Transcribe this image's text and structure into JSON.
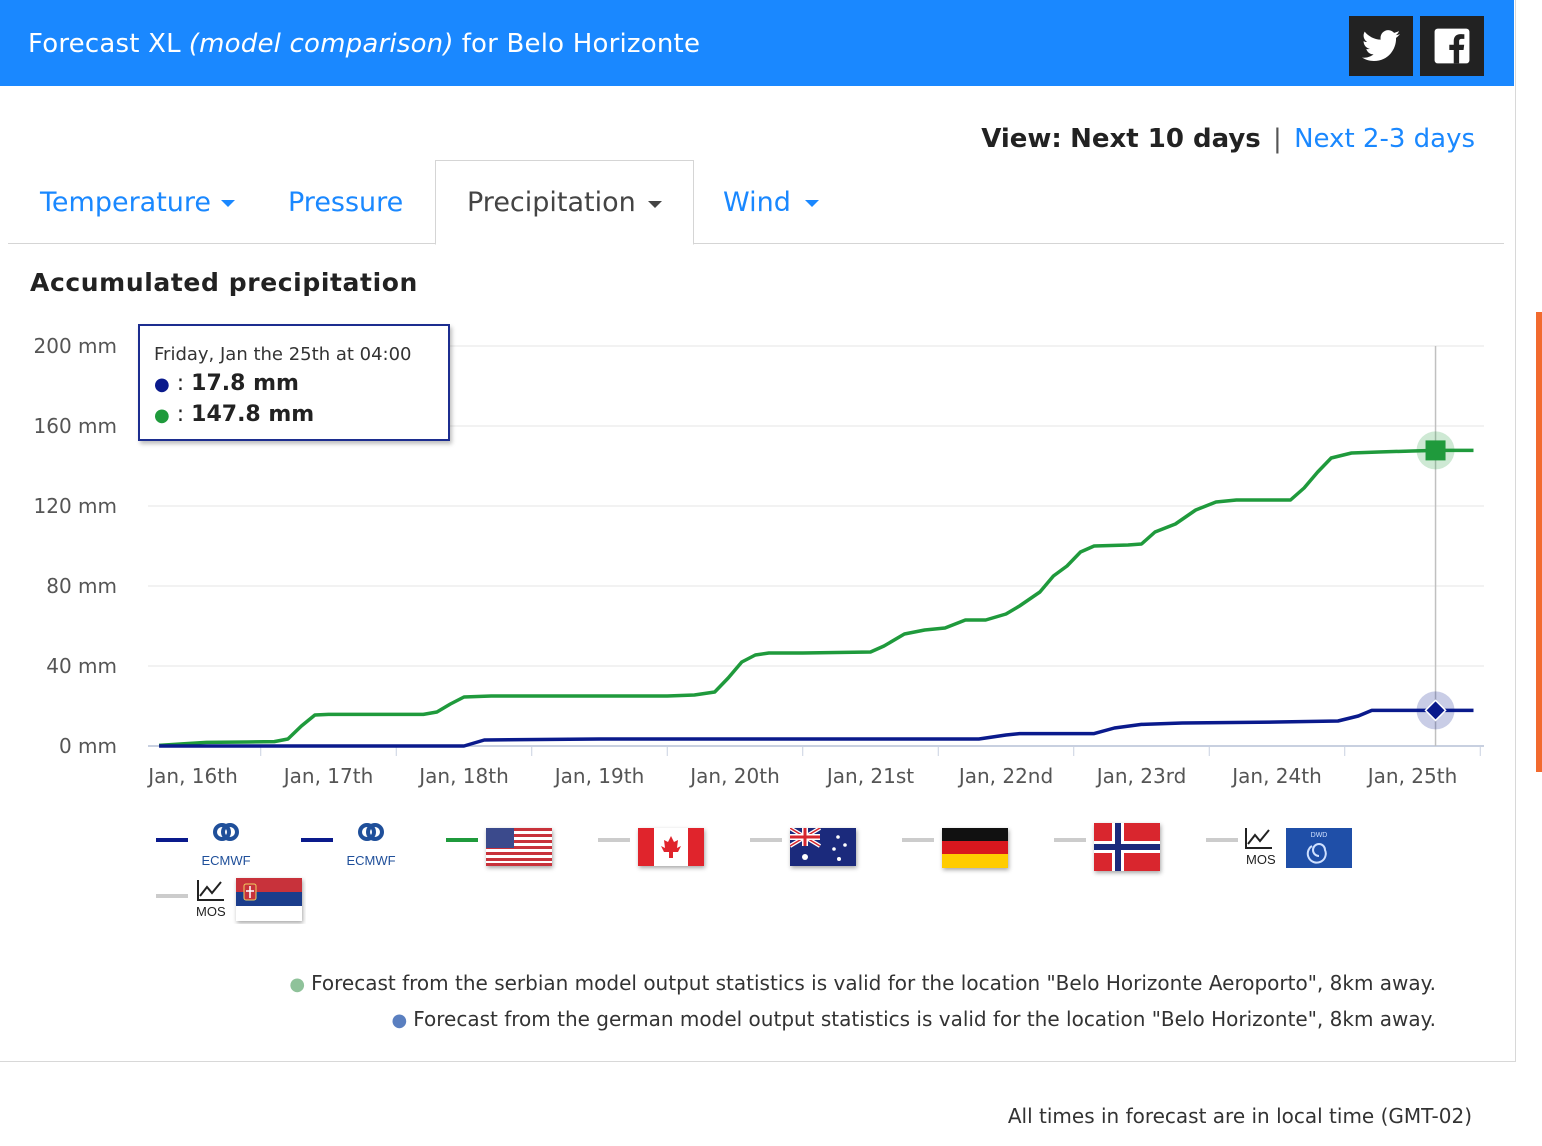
{
  "header": {
    "title_prefix": "Forecast XL",
    "title_italic": "(model comparison)",
    "title_suffix": "for Belo Horizonte",
    "share_twitter": "twitter-icon",
    "share_facebook": "facebook-icon"
  },
  "view": {
    "label": "View:",
    "current": "Next 10 days",
    "separator": "|",
    "alternative": "Next 2-3 days"
  },
  "tabs": [
    {
      "label": "Temperature",
      "dropdown": true,
      "active": false
    },
    {
      "label": "Pressure",
      "dropdown": false,
      "active": false
    },
    {
      "label": "Precipitation",
      "dropdown": true,
      "active": true
    },
    {
      "label": "Wind",
      "dropdown": true,
      "active": false
    }
  ],
  "chart_title": "Accumulated precipitation",
  "tooltip": {
    "header": "Friday, Jan the 25th at 04:00",
    "rows": [
      {
        "marker": "●",
        "sep": ":",
        "value": "17.8 mm",
        "color": "#0a1a8c"
      },
      {
        "marker": "●",
        "sep": ":",
        "value": "147.8 mm",
        "color": "#1f9a3c"
      }
    ]
  },
  "chart_data": {
    "type": "line",
    "title": "Accumulated precipitation",
    "ylabel": "",
    "xlabel": "",
    "y_unit": "mm",
    "ylim": [
      0,
      200
    ],
    "y_ticks": [
      0,
      40,
      80,
      120,
      160,
      200
    ],
    "y_tick_labels": [
      "0 mm",
      "40 mm",
      "80 mm",
      "120 mm",
      "160 mm",
      "200 mm"
    ],
    "x_unit": "days from Jan 16th 00:00",
    "x_ticks": [
      0,
      1,
      2,
      3,
      4,
      5,
      6,
      7,
      8,
      9
    ],
    "x_tick_labels": [
      "Jan, 16th",
      "Jan, 17th",
      "Jan, 18th",
      "Jan, 19th",
      "Jan, 20th",
      "Jan, 21st",
      "Jan, 22nd",
      "Jan, 23rd",
      "Jan, 24th",
      "Jan, 25th"
    ],
    "xlim": [
      -0.25,
      9.5
    ],
    "grid": true,
    "crosshair_x": 9.17,
    "series": [
      {
        "color": "#1f9a3c",
        "marker": "square",
        "points": [
          [
            -0.25,
            0.3
          ],
          [
            -0.05,
            1.2
          ],
          [
            0.1,
            1.8
          ],
          [
            0.4,
            2.0
          ],
          [
            0.6,
            2.2
          ],
          [
            0.7,
            3.5
          ],
          [
            0.8,
            10
          ],
          [
            0.9,
            15.5
          ],
          [
            1.0,
            15.8
          ],
          [
            1.7,
            15.8
          ],
          [
            1.8,
            17
          ],
          [
            1.9,
            21
          ],
          [
            2.0,
            24.5
          ],
          [
            2.2,
            25
          ],
          [
            3.5,
            25
          ],
          [
            3.7,
            25.5
          ],
          [
            3.85,
            27
          ],
          [
            3.95,
            34
          ],
          [
            4.05,
            42
          ],
          [
            4.15,
            45.5
          ],
          [
            4.25,
            46.5
          ],
          [
            4.5,
            46.5
          ],
          [
            5.0,
            47
          ],
          [
            5.1,
            50
          ],
          [
            5.25,
            56
          ],
          [
            5.4,
            58
          ],
          [
            5.55,
            59
          ],
          [
            5.7,
            63
          ],
          [
            5.85,
            63
          ],
          [
            6.0,
            66
          ],
          [
            6.1,
            70
          ],
          [
            6.25,
            77
          ],
          [
            6.35,
            85
          ],
          [
            6.45,
            90
          ],
          [
            6.55,
            97
          ],
          [
            6.65,
            100
          ],
          [
            6.9,
            100.5
          ],
          [
            7.0,
            101
          ],
          [
            7.1,
            107
          ],
          [
            7.25,
            111
          ],
          [
            7.4,
            118
          ],
          [
            7.55,
            122
          ],
          [
            7.7,
            123
          ],
          [
            7.95,
            123
          ],
          [
            8.1,
            123
          ],
          [
            8.2,
            129
          ],
          [
            8.3,
            137
          ],
          [
            8.4,
            144
          ],
          [
            8.55,
            146.5
          ],
          [
            8.75,
            147
          ],
          [
            9.0,
            147.5
          ],
          [
            9.17,
            147.8
          ],
          [
            9.45,
            147.8
          ]
        ]
      },
      {
        "color": "#0a1a8c",
        "marker": "diamond",
        "points": [
          [
            -0.25,
            0
          ],
          [
            2.0,
            0
          ],
          [
            2.15,
            3.0
          ],
          [
            3.0,
            3.5
          ],
          [
            4.5,
            3.5
          ],
          [
            5.5,
            3.5
          ],
          [
            5.8,
            3.5
          ],
          [
            6.0,
            5.5
          ],
          [
            6.1,
            6.2
          ],
          [
            6.65,
            6.2
          ],
          [
            6.8,
            9
          ],
          [
            7.0,
            10.8
          ],
          [
            7.3,
            11.5
          ],
          [
            8.0,
            12
          ],
          [
            8.45,
            12.5
          ],
          [
            8.6,
            15
          ],
          [
            8.7,
            17.8
          ],
          [
            9.17,
            17.8
          ],
          [
            9.45,
            17.8
          ]
        ]
      }
    ]
  },
  "legend": [
    {
      "line_color": "#0a1a8c",
      "icon": "ecmwf-logo-icon",
      "label": "ECMWF"
    },
    {
      "line_color": "#0a1a8c",
      "icon": "ecmwf-logo-icon",
      "label": "ECMWF"
    },
    {
      "line_color": "#1f9a3c",
      "icon": "usa-flag-icon"
    },
    {
      "line_color": "#cccccc",
      "icon": "canada-flag-icon"
    },
    {
      "line_color": "#cccccc",
      "icon": "australia-flag-icon"
    },
    {
      "line_color": "#cccccc",
      "icon": "germany-flag-icon"
    },
    {
      "line_color": "#cccccc",
      "icon": "norway-flag-icon"
    },
    {
      "line_color": "#cccccc",
      "icon": "mos-dwd-icon",
      "label": "MOS",
      "badge": "DWD"
    },
    {
      "line_color": "#cccccc",
      "icon": "mos-serbia-flag-icon",
      "label": "MOS"
    }
  ],
  "notes": [
    {
      "dot_color": "#8fc29a",
      "text": "Forecast from the serbian model output statistics is valid for the location \"Belo Horizonte Aeroporto\", 8km away."
    },
    {
      "dot_color": "#5a7fc0",
      "text": "Forecast from the german model output statistics is valid for the location \"Belo Horizonte\", 8km away."
    }
  ],
  "footer": "All times in forecast are in local time (GMT-02)"
}
